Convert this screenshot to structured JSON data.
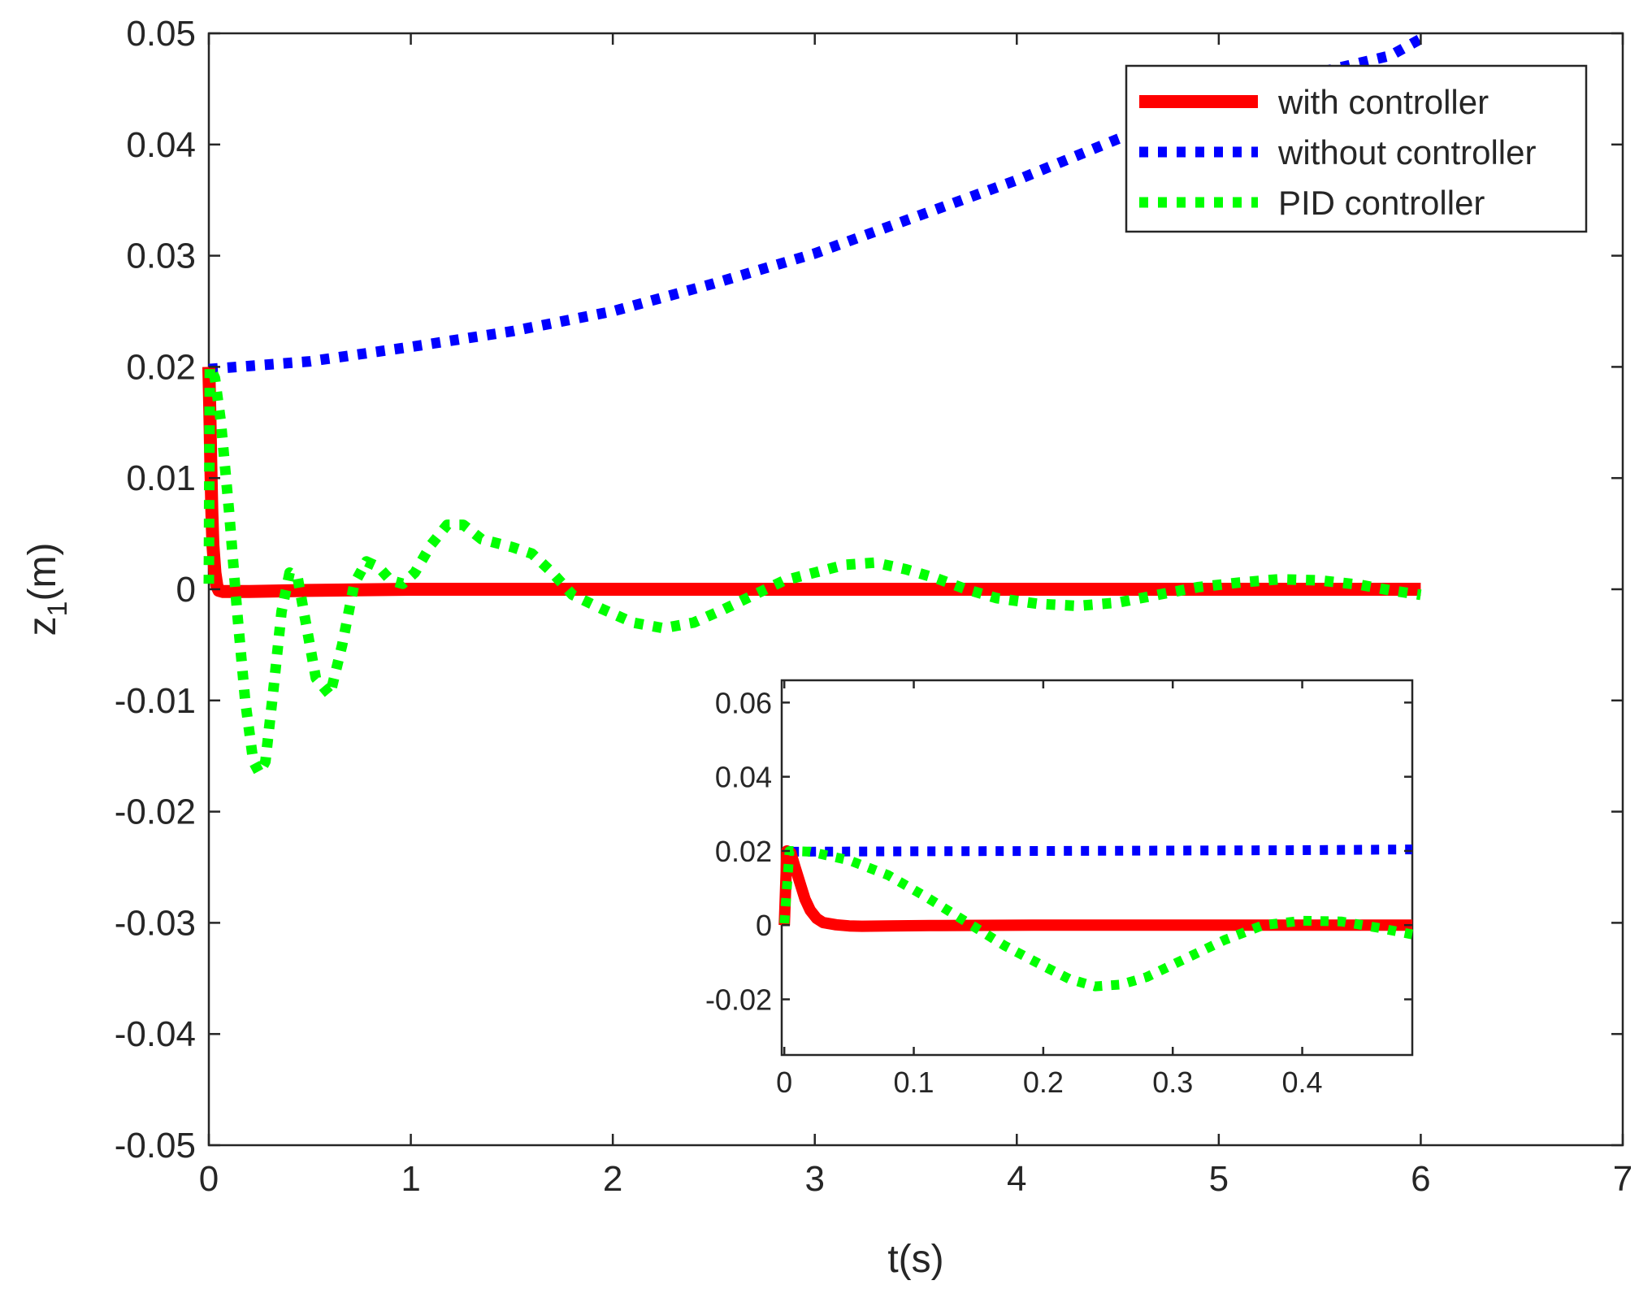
{
  "chart_data": [
    {
      "id": "main",
      "type": "line",
      "xlabel": "t(s)",
      "ylabel": {
        "base": "z",
        "sub": "1",
        "suffix": "(m)"
      },
      "xlim": [
        0,
        7
      ],
      "ylim": [
        -0.05,
        0.05
      ],
      "xticks": [
        0,
        1,
        2,
        3,
        4,
        5,
        6,
        7
      ],
      "xtick_labels": [
        "0",
        "1",
        "2",
        "3",
        "4",
        "5",
        "6",
        "7"
      ],
      "yticks": [
        -0.05,
        -0.04,
        -0.03,
        -0.02,
        -0.01,
        0,
        0.01,
        0.02,
        0.03,
        0.04,
        0.05
      ],
      "ytick_labels": [
        "-0.05",
        "-0.04",
        "-0.03",
        "-0.02",
        "-0.01",
        "0",
        "0.01",
        "0.02",
        "0.03",
        "0.04",
        "0.05"
      ],
      "grid": false,
      "legend_position": "top-right",
      "series": [
        {
          "name": "with controller",
          "color": "#ff0000",
          "style": "solid",
          "points": [
            [
              0,
              0.02
            ],
            [
              0.005,
              0.016
            ],
            [
              0.01,
              0.011
            ],
            [
              0.015,
              0.007
            ],
            [
              0.02,
              0.004
            ],
            [
              0.03,
              0.0015
            ],
            [
              0.04,
              0.0003
            ],
            [
              0.05,
              -0.0001
            ],
            [
              0.07,
              -0.0002
            ],
            [
              0.1,
              -0.0002
            ],
            [
              0.2,
              -0.0002
            ],
            [
              0.5,
              -0.0001
            ],
            [
              1,
              0
            ],
            [
              2,
              0
            ],
            [
              3,
              0
            ],
            [
              4,
              0
            ],
            [
              5,
              0
            ],
            [
              6,
              0
            ]
          ]
        },
        {
          "name": "without controller",
          "color": "#0000ff",
          "style": "dotted",
          "points": [
            [
              0,
              0.0198
            ],
            [
              0.5,
              0.0205
            ],
            [
              1,
              0.0218
            ],
            [
              1.5,
              0.0232
            ],
            [
              2,
              0.025
            ],
            [
              2.5,
              0.0275
            ],
            [
              3,
              0.0302
            ],
            [
              3.5,
              0.0335
            ],
            [
              4,
              0.0368
            ],
            [
              4.5,
              0.0405
            ],
            [
              5,
              0.044
            ],
            [
              5.5,
              0.0465
            ],
            [
              5.85,
              0.048
            ],
            [
              6,
              0.0495
            ]
          ]
        },
        {
          "name": "PID controller",
          "color": "#00ff00",
          "style": "dotted",
          "points": [
            [
              0,
              0.0005
            ],
            [
              0.005,
              0.02
            ],
            [
              0.03,
              0.019
            ],
            [
              0.06,
              0.015
            ],
            [
              0.1,
              0.007
            ],
            [
              0.14,
              -0.002
            ],
            [
              0.18,
              -0.01
            ],
            [
              0.22,
              -0.0155
            ],
            [
              0.25,
              -0.0165
            ],
            [
              0.28,
              -0.0155
            ],
            [
              0.32,
              -0.009
            ],
            [
              0.36,
              -0.002
            ],
            [
              0.4,
              0.0015
            ],
            [
              0.44,
              0.001
            ],
            [
              0.48,
              -0.003
            ],
            [
              0.53,
              -0.008
            ],
            [
              0.6,
              -0.0095
            ],
            [
              0.66,
              -0.005
            ],
            [
              0.72,
              0.0005
            ],
            [
              0.78,
              0.0025
            ],
            [
              0.84,
              0.002
            ],
            [
              0.9,
              0.0008
            ],
            [
              0.96,
              0.0005
            ],
            [
              1.02,
              0.0015
            ],
            [
              1.1,
              0.004
            ],
            [
              1.18,
              0.0058
            ],
            [
              1.26,
              0.0058
            ],
            [
              1.35,
              0.0045
            ],
            [
              1.5,
              0.0038
            ],
            [
              1.6,
              0.0032
            ],
            [
              1.7,
              0.0015
            ],
            [
              1.8,
              -0.0005
            ],
            [
              1.95,
              -0.0018
            ],
            [
              2.1,
              -0.003
            ],
            [
              2.25,
              -0.0035
            ],
            [
              2.4,
              -0.003
            ],
            [
              2.55,
              -0.0018
            ],
            [
              2.7,
              -0.0005
            ],
            [
              2.85,
              0.0008
            ],
            [
              3.0,
              0.0015
            ],
            [
              3.15,
              0.0022
            ],
            [
              3.3,
              0.0024
            ],
            [
              3.45,
              0.0018
            ],
            [
              3.6,
              0.001
            ],
            [
              3.75,
              0
            ],
            [
              3.9,
              -0.0008
            ],
            [
              4.1,
              -0.0013
            ],
            [
              4.3,
              -0.0015
            ],
            [
              4.5,
              -0.0012
            ],
            [
              4.7,
              -0.0005
            ],
            [
              4.9,
              0.0002
            ],
            [
              5.1,
              0.0006
            ],
            [
              5.3,
              0.0009
            ],
            [
              5.5,
              0.0008
            ],
            [
              5.7,
              0.0004
            ],
            [
              5.85,
              -0.0001
            ],
            [
              6,
              -0.0005
            ]
          ]
        }
      ]
    },
    {
      "id": "inset",
      "type": "line",
      "xlim": [
        -0.002,
        0.485
      ],
      "ylim": [
        -0.035,
        0.066
      ],
      "xticks": [
        0,
        0.1,
        0.2,
        0.3,
        0.4
      ],
      "xtick_labels": [
        "0",
        "0.1",
        "0.2",
        "0.3",
        "0.4"
      ],
      "yticks": [
        -0.02,
        0,
        0.02,
        0.04,
        0.06
      ],
      "ytick_labels": [
        "-0.02",
        "0",
        "0.02",
        "0.04",
        "0.06"
      ],
      "grid": false,
      "series": [
        {
          "name": "with controller",
          "color": "#ff0000",
          "style": "solid",
          "points": [
            [
              0,
              0.0
            ],
            [
              0.002,
              0.02
            ],
            [
              0.005,
              0.0195
            ],
            [
              0.008,
              0.016
            ],
            [
              0.012,
              0.0115
            ],
            [
              0.016,
              0.007
            ],
            [
              0.02,
              0.004
            ],
            [
              0.025,
              0.0018
            ],
            [
              0.03,
              0.0007
            ],
            [
              0.04,
              0.0001
            ],
            [
              0.05,
              -0.0002
            ],
            [
              0.06,
              -0.0003
            ],
            [
              0.08,
              -0.0002
            ],
            [
              0.12,
              -0.0001
            ],
            [
              0.2,
              0
            ],
            [
              0.3,
              0
            ],
            [
              0.4,
              0
            ],
            [
              0.485,
              0
            ]
          ]
        },
        {
          "name": "without controller",
          "color": "#0000ff",
          "style": "dotted",
          "points": [
            [
              0.005,
              0.0198
            ],
            [
              0.1,
              0.0199
            ],
            [
              0.2,
              0.02
            ],
            [
              0.3,
              0.0201
            ],
            [
              0.4,
              0.0202
            ],
            [
              0.485,
              0.0204
            ]
          ]
        },
        {
          "name": "PID controller",
          "color": "#00ff00",
          "style": "dotted",
          "points": [
            [
              0,
              0.0005
            ],
            [
              0.004,
              0.02
            ],
            [
              0.02,
              0.0198
            ],
            [
              0.05,
              0.0175
            ],
            [
              0.08,
              0.0135
            ],
            [
              0.11,
              0.0075
            ],
            [
              0.14,
              0.001
            ],
            [
              0.17,
              -0.0055
            ],
            [
              0.2,
              -0.011
            ],
            [
              0.22,
              -0.0145
            ],
            [
              0.24,
              -0.0165
            ],
            [
              0.26,
              -0.016
            ],
            [
              0.28,
              -0.014
            ],
            [
              0.31,
              -0.009
            ],
            [
              0.34,
              -0.004
            ],
            [
              0.37,
              0
            ],
            [
              0.4,
              0.0012
            ],
            [
              0.43,
              0.001
            ],
            [
              0.46,
              -0.0008
            ],
            [
              0.485,
              -0.0025
            ]
          ]
        }
      ]
    }
  ]
}
